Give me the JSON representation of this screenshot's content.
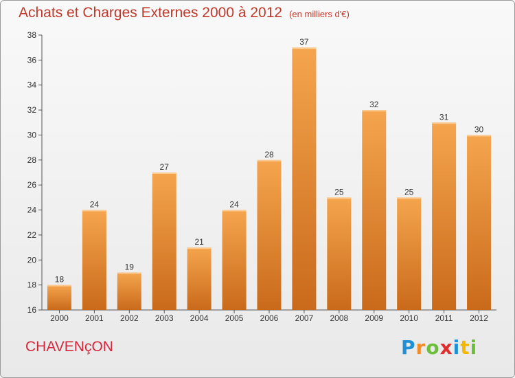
{
  "title": "Achats et Charges Externes 2000 à 2012",
  "subtitle": "(en milliers d'€)",
  "commune": "CHAVENçON",
  "logo": {
    "letters": [
      "P",
      "r",
      "o",
      "x",
      "i",
      "t",
      "i"
    ],
    "colors": [
      "#1f8fd6",
      "#f28c28",
      "#6cbf3a",
      "#e02d2d",
      "#1f8fd6",
      "#f5b800",
      "#6cbf3a"
    ]
  },
  "colors": {
    "bar_top": "#f5a54e",
    "bar_bottom": "#c96a1a",
    "title": "#c0392b",
    "commune": "#d6263b"
  },
  "chart_data": {
    "type": "bar",
    "categories": [
      "2000",
      "2001",
      "2002",
      "2003",
      "2004",
      "2005",
      "2006",
      "2007",
      "2008",
      "2009",
      "2010",
      "2011",
      "2012"
    ],
    "values": [
      18,
      24,
      19,
      27,
      21,
      24,
      28,
      37,
      25,
      32,
      25,
      31,
      30
    ],
    "yticks": [
      16,
      18,
      20,
      22,
      24,
      26,
      28,
      30,
      32,
      34,
      36,
      38
    ],
    "ylim": [
      16,
      38
    ],
    "grid": false,
    "data_labels": true
  }
}
